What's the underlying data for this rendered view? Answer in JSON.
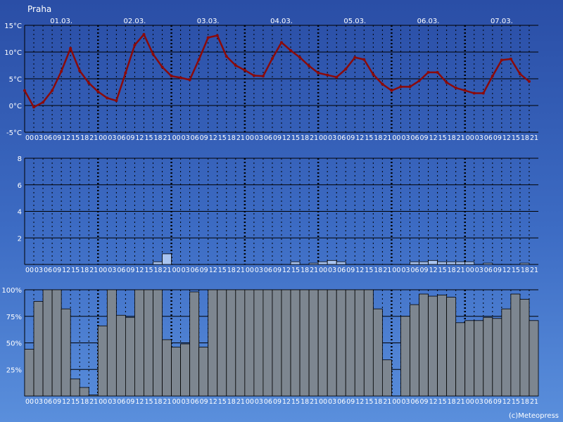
{
  "header": {
    "city": "Praha"
  },
  "footer": {
    "copyright": "(c)Meteopress"
  },
  "colors": {
    "background_top": "#2a4ea6",
    "background_bottom": "#5a8fdc",
    "temperature_line": "#8b0a0a",
    "precipitation_bar": "#a9c4f0",
    "cloud_bar": "#7d8690"
  },
  "chart_data": [
    {
      "type": "line",
      "id": "temperature",
      "unit": "°C",
      "day_labels": [
        "01.03.",
        "02.03.",
        "03.03.",
        "04.03.",
        "05.03.",
        "06.03.",
        "07.03."
      ],
      "hour_labels": [
        "00",
        "03",
        "06",
        "09",
        "12",
        "15",
        "18",
        "21"
      ],
      "yticks": [
        "15°C",
        "10°C",
        "5°C",
        "0°C",
        "-5°C"
      ],
      "ylim": [
        -5,
        15
      ],
      "step_hours": 3,
      "values": [
        2.8,
        -0.3,
        0.6,
        2.8,
        6.4,
        10.7,
        6.5,
        4.2,
        2.6,
        1.4,
        0.9,
        6.1,
        11.3,
        13.3,
        9.6,
        7.2,
        5.5,
        5.2,
        4.8,
        8.6,
        12.7,
        13.1,
        9.2,
        7.5,
        6.6,
        5.6,
        5.5,
        8.8,
        11.8,
        10.3,
        9.0,
        7.4,
        6.1,
        5.7,
        5.3,
        6.8,
        9.0,
        8.6,
        5.8,
        4.0,
        2.8,
        3.5,
        3.5,
        4.6,
        6.2,
        6.2,
        4.3,
        3.3,
        2.8,
        2.3,
        2.3,
        5.5,
        8.5,
        8.7,
        5.9,
        4.5
      ]
    },
    {
      "type": "bar",
      "id": "precipitation",
      "unit": "mm",
      "yticks": [
        "8",
        "6",
        "4",
        "2"
      ],
      "ylim": [
        0,
        8
      ],
      "step_hours": 3,
      "values": [
        0,
        0,
        0,
        0,
        0,
        0,
        0,
        0,
        0,
        0,
        0,
        0,
        0,
        0,
        0.2,
        0.8,
        0,
        0,
        0,
        0,
        0,
        0,
        0,
        0,
        0,
        0,
        0,
        0,
        0,
        0.2,
        0,
        0.1,
        0.2,
        0.3,
        0.2,
        0,
        0,
        0,
        0,
        0,
        0,
        0,
        0.2,
        0.2,
        0.3,
        0.2,
        0.2,
        0.2,
        0.2,
        0,
        0.1,
        0,
        0,
        0,
        0.1,
        0
      ]
    },
    {
      "type": "bar",
      "id": "cloudiness",
      "unit": "%",
      "yticks": [
        "100%",
        "75%",
        "50%",
        "25%"
      ],
      "ylim": [
        0,
        100
      ],
      "step_hours": 3,
      "values": [
        44,
        89,
        100,
        100,
        82,
        16,
        8,
        1,
        66,
        100,
        76,
        74,
        100,
        100,
        100,
        53,
        46,
        49,
        98,
        46,
        100,
        100,
        100,
        100,
        100,
        100,
        100,
        100,
        100,
        100,
        100,
        100,
        100,
        100,
        100,
        100,
        100,
        100,
        82,
        34,
        0,
        75,
        86,
        96,
        94,
        95,
        93,
        69,
        71,
        71,
        74,
        73,
        82,
        96,
        91,
        71
      ]
    }
  ]
}
